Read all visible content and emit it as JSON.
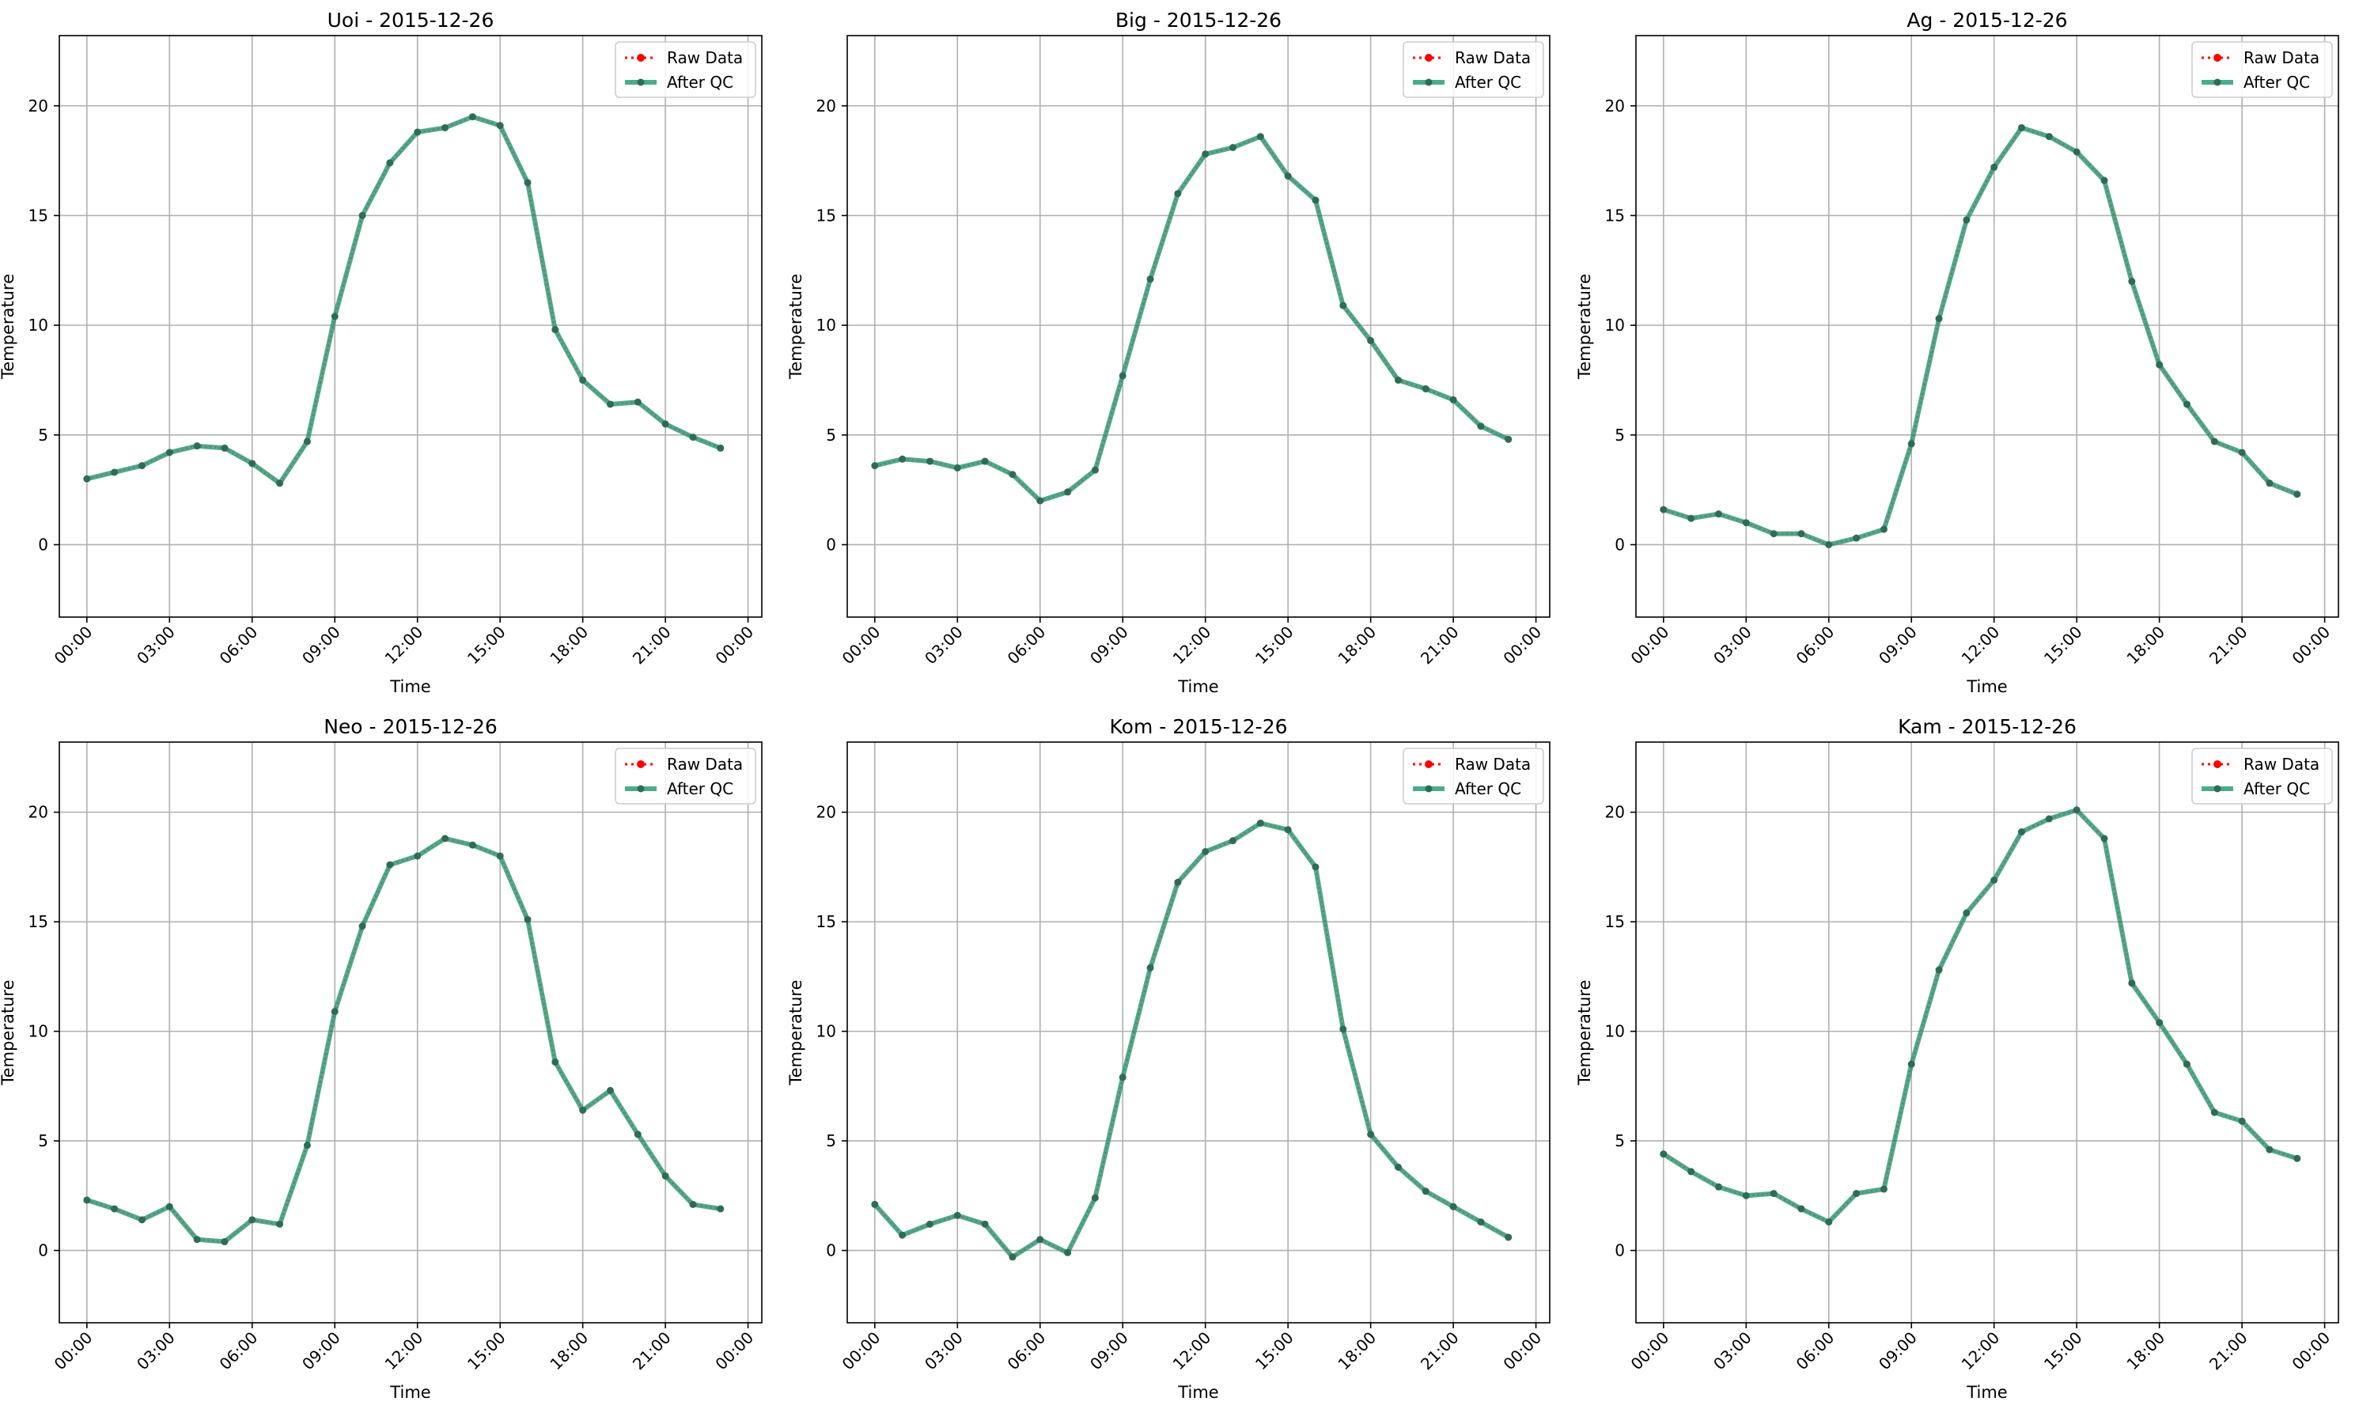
{
  "colors": {
    "raw": "#ff0000",
    "qc": "#2a9d78",
    "grid": "#b0b0b0",
    "axis": "#000000"
  },
  "legend_labels": {
    "raw": "Raw Data",
    "qc": "After QC"
  },
  "axis_labels": {
    "x": "Time",
    "y": "Temperature"
  },
  "x_ticks": [
    "00:00",
    "03:00",
    "06:00",
    "09:00",
    "12:00",
    "15:00",
    "18:00",
    "21:00",
    "00:00"
  ],
  "y_ticks": [
    "0",
    "5",
    "10",
    "15",
    "20"
  ],
  "chart_data": [
    {
      "type": "line",
      "title": "Uoi - 2015-12-26",
      "xlabel": "Time",
      "ylabel": "Temperature",
      "x_range": [
        "2015-12-26 00:00",
        "2015-12-27 00:00"
      ],
      "ylim": [
        -3.3,
        23.2
      ],
      "grid": true,
      "legend": "upper-right",
      "x": [
        "00:00",
        "01:00",
        "02:00",
        "03:00",
        "04:00",
        "05:00",
        "06:00",
        "07:00",
        "08:00",
        "09:00",
        "10:00",
        "11:00",
        "12:00",
        "13:00",
        "14:00",
        "15:00",
        "16:00",
        "17:00",
        "18:00",
        "19:00",
        "20:00",
        "21:00",
        "22:00",
        "23:00"
      ],
      "series": [
        {
          "name": "Raw Data",
          "values": [
            3.0,
            3.3,
            3.6,
            4.2,
            4.5,
            4.4,
            3.7,
            2.8,
            4.7,
            10.4,
            15.0,
            17.4,
            18.8,
            19.0,
            19.5,
            19.1,
            16.5,
            9.8,
            7.5,
            6.4,
            6.5,
            5.5,
            4.9,
            4.4
          ]
        },
        {
          "name": "After QC",
          "values": [
            3.0,
            3.3,
            3.6,
            4.2,
            4.5,
            4.4,
            3.7,
            2.8,
            4.7,
            10.4,
            15.0,
            17.4,
            18.8,
            19.0,
            19.5,
            19.1,
            16.5,
            9.8,
            7.5,
            6.4,
            6.5,
            5.5,
            4.9,
            4.4
          ]
        }
      ]
    },
    {
      "type": "line",
      "title": "Big - 2015-12-26",
      "xlabel": "Time",
      "ylabel": "Temperature",
      "x_range": [
        "2015-12-26 00:00",
        "2015-12-27 00:00"
      ],
      "ylim": [
        -3.3,
        23.2
      ],
      "grid": true,
      "legend": "upper-right",
      "x": [
        "00:00",
        "01:00",
        "02:00",
        "03:00",
        "04:00",
        "05:00",
        "06:00",
        "07:00",
        "08:00",
        "09:00",
        "10:00",
        "11:00",
        "12:00",
        "13:00",
        "14:00",
        "15:00",
        "16:00",
        "17:00",
        "18:00",
        "19:00",
        "20:00",
        "21:00",
        "22:00",
        "23:00"
      ],
      "series": [
        {
          "name": "Raw Data",
          "values": [
            3.6,
            3.9,
            3.8,
            3.5,
            3.8,
            3.2,
            2.0,
            2.4,
            3.4,
            7.7,
            12.1,
            16.0,
            17.8,
            18.1,
            18.6,
            16.8,
            15.7,
            10.9,
            9.3,
            7.5,
            7.1,
            6.6,
            5.4,
            4.8
          ]
        },
        {
          "name": "After QC",
          "values": [
            3.6,
            3.9,
            3.8,
            3.5,
            3.8,
            3.2,
            2.0,
            2.4,
            3.4,
            7.7,
            12.1,
            16.0,
            17.8,
            18.1,
            18.6,
            16.8,
            15.7,
            10.9,
            9.3,
            7.5,
            7.1,
            6.6,
            5.4,
            4.8
          ]
        }
      ]
    },
    {
      "type": "line",
      "title": "Ag - 2015-12-26",
      "xlabel": "Time",
      "ylabel": "Temperature",
      "x_range": [
        "2015-12-26 00:00",
        "2015-12-27 00:00"
      ],
      "ylim": [
        -3.3,
        23.2
      ],
      "grid": true,
      "legend": "upper-right",
      "x": [
        "00:00",
        "01:00",
        "02:00",
        "03:00",
        "04:00",
        "05:00",
        "06:00",
        "07:00",
        "08:00",
        "09:00",
        "10:00",
        "11:00",
        "12:00",
        "13:00",
        "14:00",
        "15:00",
        "16:00",
        "17:00",
        "18:00",
        "19:00",
        "20:00",
        "21:00",
        "22:00",
        "23:00"
      ],
      "series": [
        {
          "name": "Raw Data",
          "values": [
            1.6,
            1.2,
            1.4,
            1.0,
            0.5,
            0.5,
            0.0,
            0.3,
            0.7,
            4.6,
            10.3,
            14.8,
            17.2,
            19.0,
            18.6,
            17.9,
            16.6,
            12.0,
            8.2,
            6.4,
            4.7,
            4.2,
            2.8,
            2.3
          ]
        },
        {
          "name": "After QC",
          "values": [
            1.6,
            1.2,
            1.4,
            1.0,
            0.5,
            0.5,
            0.0,
            0.3,
            0.7,
            4.6,
            10.3,
            14.8,
            17.2,
            19.0,
            18.6,
            17.9,
            16.6,
            12.0,
            8.2,
            6.4,
            4.7,
            4.2,
            2.8,
            2.3
          ]
        }
      ]
    },
    {
      "type": "line",
      "title": "Neo - 2015-12-26",
      "xlabel": "Time",
      "ylabel": "Temperature",
      "x_range": [
        "2015-12-26 00:00",
        "2015-12-27 00:00"
      ],
      "ylim": [
        -3.3,
        23.2
      ],
      "grid": true,
      "legend": "upper-right",
      "x": [
        "00:00",
        "01:00",
        "02:00",
        "03:00",
        "04:00",
        "05:00",
        "06:00",
        "07:00",
        "08:00",
        "09:00",
        "10:00",
        "11:00",
        "12:00",
        "13:00",
        "14:00",
        "15:00",
        "16:00",
        "17:00",
        "18:00",
        "19:00",
        "20:00",
        "21:00",
        "22:00",
        "23:00"
      ],
      "series": [
        {
          "name": "Raw Data",
          "values": [
            2.3,
            1.9,
            1.4,
            2.0,
            0.5,
            0.4,
            1.4,
            1.2,
            4.8,
            10.9,
            14.8,
            17.6,
            18.0,
            18.8,
            18.5,
            18.0,
            15.1,
            8.6,
            6.4,
            7.3,
            5.3,
            3.4,
            2.1,
            1.9
          ]
        },
        {
          "name": "After QC",
          "values": [
            2.3,
            1.9,
            1.4,
            2.0,
            0.5,
            0.4,
            1.4,
            1.2,
            4.8,
            10.9,
            14.8,
            17.6,
            18.0,
            18.8,
            18.5,
            18.0,
            15.1,
            8.6,
            6.4,
            7.3,
            5.3,
            3.4,
            2.1,
            1.9
          ]
        }
      ]
    },
    {
      "type": "line",
      "title": "Kom - 2015-12-26",
      "xlabel": "Time",
      "ylabel": "Temperature",
      "x_range": [
        "2015-12-26 00:00",
        "2015-12-27 00:00"
      ],
      "ylim": [
        -3.3,
        23.2
      ],
      "grid": true,
      "legend": "upper-right",
      "x": [
        "00:00",
        "01:00",
        "02:00",
        "03:00",
        "04:00",
        "05:00",
        "06:00",
        "07:00",
        "08:00",
        "09:00",
        "10:00",
        "11:00",
        "12:00",
        "13:00",
        "14:00",
        "15:00",
        "16:00",
        "17:00",
        "18:00",
        "19:00",
        "20:00",
        "21:00",
        "22:00",
        "23:00"
      ],
      "series": [
        {
          "name": "Raw Data",
          "values": [
            2.1,
            0.7,
            1.2,
            1.6,
            1.2,
            -0.3,
            0.5,
            -0.1,
            2.4,
            7.9,
            12.9,
            16.8,
            18.2,
            18.7,
            19.5,
            19.2,
            17.5,
            10.1,
            5.3,
            3.8,
            2.7,
            2.0,
            1.3,
            0.6
          ]
        },
        {
          "name": "After QC",
          "values": [
            2.1,
            0.7,
            1.2,
            1.6,
            1.2,
            -0.3,
            0.5,
            -0.1,
            2.4,
            7.9,
            12.9,
            16.8,
            18.2,
            18.7,
            19.5,
            19.2,
            17.5,
            10.1,
            5.3,
            3.8,
            2.7,
            2.0,
            1.3,
            0.6
          ]
        }
      ]
    },
    {
      "type": "line",
      "title": "Kam - 2015-12-26",
      "xlabel": "Time",
      "ylabel": "Temperature",
      "x_range": [
        "2015-12-26 00:00",
        "2015-12-27 00:00"
      ],
      "ylim": [
        -3.3,
        23.2
      ],
      "grid": true,
      "legend": "upper-right",
      "x": [
        "00:00",
        "01:00",
        "02:00",
        "03:00",
        "04:00",
        "05:00",
        "06:00",
        "07:00",
        "08:00",
        "09:00",
        "10:00",
        "11:00",
        "12:00",
        "13:00",
        "14:00",
        "15:00",
        "16:00",
        "17:00",
        "18:00",
        "19:00",
        "20:00",
        "21:00",
        "22:00",
        "23:00"
      ],
      "series": [
        {
          "name": "Raw Data",
          "values": [
            4.4,
            3.6,
            2.9,
            2.5,
            2.6,
            1.9,
            1.3,
            2.6,
            2.8,
            8.5,
            12.8,
            15.4,
            16.9,
            19.1,
            19.7,
            20.1,
            18.8,
            12.2,
            10.4,
            8.5,
            6.3,
            5.9,
            4.6,
            4.2
          ]
        },
        {
          "name": "After QC",
          "values": [
            4.4,
            3.6,
            2.9,
            2.5,
            2.6,
            1.9,
            1.3,
            2.6,
            2.8,
            8.5,
            12.8,
            15.4,
            16.9,
            19.1,
            19.7,
            20.1,
            18.8,
            12.2,
            10.4,
            8.5,
            6.3,
            5.9,
            4.6,
            4.2
          ]
        }
      ]
    }
  ]
}
